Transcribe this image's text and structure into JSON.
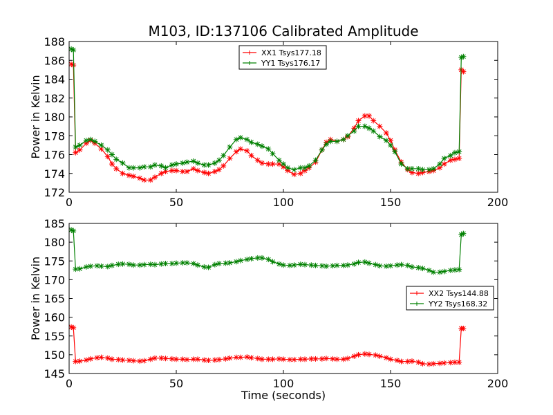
{
  "colors": {
    "xx": "#ff0000",
    "yy": "#008000"
  },
  "chart_data": [
    {
      "type": "line",
      "title": "M103, ID:137106 Calibrated Amplitude",
      "xlabel": "",
      "ylabel": "Power in Kelvin",
      "xlim": [
        0,
        200
      ],
      "ylim": [
        172,
        188
      ],
      "xticks": [
        0,
        50,
        100,
        150,
        200
      ],
      "yticks": [
        172,
        174,
        176,
        178,
        180,
        182,
        184,
        186,
        188
      ],
      "legend_position": "top-center",
      "series": [
        {
          "name": "XX1 Tsys177.18",
          "color": "#ff0000",
          "x": [
            1,
            2,
            3,
            5,
            8,
            10,
            12,
            15,
            18,
            20,
            22,
            25,
            28,
            30,
            33,
            35,
            38,
            40,
            43,
            45,
            48,
            50,
            53,
            55,
            58,
            60,
            63,
            65,
            68,
            70,
            72,
            75,
            78,
            80,
            83,
            85,
            88,
            90,
            93,
            95,
            98,
            100,
            102,
            105,
            108,
            110,
            112,
            115,
            118,
            120,
            122,
            125,
            128,
            130,
            133,
            135,
            138,
            140,
            142,
            145,
            148,
            150,
            152,
            155,
            158,
            160,
            163,
            165,
            168,
            170,
            173,
            175,
            178,
            180,
            182,
            183,
            184
          ],
          "y": [
            185.6,
            185.5,
            176.2,
            176.5,
            177.2,
            177.5,
            177.2,
            176.6,
            175.8,
            175.0,
            174.5,
            174.0,
            173.8,
            173.7,
            173.5,
            173.3,
            173.3,
            173.6,
            174.0,
            174.2,
            174.3,
            174.3,
            174.2,
            174.2,
            174.5,
            174.3,
            174.1,
            174.0,
            174.2,
            174.4,
            174.8,
            175.6,
            176.3,
            176.6,
            176.4,
            175.9,
            175.4,
            175.1,
            175.0,
            175.0,
            175.0,
            174.7,
            174.3,
            173.9,
            174.0,
            174.3,
            174.6,
            175.2,
            176.5,
            177.3,
            177.6,
            177.4,
            177.6,
            177.9,
            178.8,
            179.6,
            180.1,
            180.1,
            179.6,
            179.0,
            178.3,
            177.5,
            176.5,
            175.2,
            174.4,
            174.1,
            174.0,
            174.1,
            174.2,
            174.3,
            174.6,
            175.0,
            175.4,
            175.5,
            175.6,
            185.0,
            184.8
          ]
        },
        {
          "name": "YY1 Tsys176.17",
          "color": "#008000",
          "x": [
            1,
            2,
            3,
            5,
            8,
            10,
            12,
            15,
            18,
            20,
            22,
            25,
            28,
            30,
            33,
            35,
            38,
            40,
            43,
            45,
            48,
            50,
            53,
            55,
            58,
            60,
            63,
            65,
            68,
            70,
            72,
            75,
            78,
            80,
            83,
            85,
            88,
            90,
            93,
            95,
            98,
            100,
            102,
            105,
            108,
            110,
            112,
            115,
            118,
            120,
            122,
            125,
            128,
            130,
            133,
            135,
            138,
            140,
            142,
            145,
            148,
            150,
            152,
            155,
            158,
            160,
            163,
            165,
            168,
            170,
            173,
            175,
            178,
            180,
            182,
            183,
            184
          ],
          "y": [
            187.2,
            187.1,
            176.8,
            177.0,
            177.5,
            177.6,
            177.4,
            177.0,
            176.5,
            176.0,
            175.5,
            175.1,
            174.6,
            174.6,
            174.6,
            174.7,
            174.7,
            174.9,
            174.8,
            174.6,
            174.9,
            175.0,
            175.1,
            175.2,
            175.3,
            175.1,
            174.9,
            174.9,
            175.1,
            175.4,
            175.9,
            176.8,
            177.6,
            177.8,
            177.6,
            177.3,
            177.1,
            176.9,
            176.6,
            176.1,
            175.4,
            175.0,
            174.6,
            174.4,
            174.6,
            174.6,
            174.8,
            175.4,
            176.5,
            177.1,
            177.4,
            177.4,
            177.6,
            178.0,
            178.5,
            179.0,
            179.0,
            178.8,
            178.5,
            177.9,
            177.5,
            177.0,
            176.3,
            175.0,
            174.5,
            174.5,
            174.5,
            174.4,
            174.4,
            174.5,
            175.0,
            175.6,
            175.9,
            176.2,
            176.3,
            186.3,
            186.4
          ]
        }
      ]
    },
    {
      "type": "line",
      "title": "",
      "xlabel": "Time (seconds)",
      "ylabel": "Power in Kelvin",
      "xlim": [
        0,
        200
      ],
      "ylim": [
        145,
        185
      ],
      "xticks": [
        0,
        50,
        100,
        150,
        200
      ],
      "yticks": [
        145,
        150,
        155,
        160,
        165,
        170,
        175,
        180,
        185
      ],
      "legend_position": "center-right",
      "series": [
        {
          "name": "XX2 Tsys144.88",
          "color": "#ff0000",
          "x": [
            1,
            2,
            3,
            5,
            8,
            10,
            13,
            15,
            18,
            20,
            23,
            25,
            28,
            30,
            33,
            35,
            38,
            40,
            43,
            45,
            48,
            50,
            53,
            55,
            58,
            60,
            63,
            65,
            68,
            70,
            73,
            75,
            78,
            80,
            83,
            85,
            88,
            90,
            93,
            95,
            98,
            100,
            103,
            105,
            108,
            110,
            113,
            115,
            118,
            120,
            123,
            125,
            128,
            130,
            133,
            135,
            138,
            140,
            143,
            145,
            148,
            150,
            153,
            155,
            158,
            160,
            163,
            165,
            168,
            170,
            173,
            175,
            178,
            180,
            182,
            183,
            184
          ],
          "y": [
            157.4,
            157.2,
            148.2,
            148.3,
            148.6,
            148.9,
            149.2,
            149.3,
            149.1,
            148.8,
            148.7,
            148.6,
            148.5,
            148.4,
            148.3,
            148.4,
            148.8,
            149.1,
            149.1,
            149.0,
            148.9,
            148.8,
            148.8,
            148.7,
            148.8,
            148.8,
            148.6,
            148.5,
            148.6,
            148.7,
            148.9,
            149.1,
            149.3,
            149.3,
            149.4,
            149.2,
            149.0,
            148.8,
            148.8,
            148.8,
            148.9,
            148.8,
            148.7,
            148.7,
            148.8,
            148.8,
            148.9,
            148.9,
            148.9,
            149.0,
            148.9,
            148.8,
            148.8,
            149.0,
            149.6,
            150.0,
            150.2,
            150.1,
            149.9,
            149.6,
            149.2,
            148.8,
            148.5,
            148.2,
            148.2,
            148.3,
            148.0,
            147.6,
            147.5,
            147.6,
            147.7,
            147.8,
            147.9,
            148.0,
            148.0,
            157.0,
            157.0
          ]
        },
        {
          "name": "YY2 Tsys168.32",
          "color": "#008000",
          "x": [
            1,
            2,
            3,
            5,
            8,
            10,
            13,
            15,
            18,
            20,
            23,
            25,
            28,
            30,
            33,
            35,
            38,
            40,
            43,
            45,
            48,
            50,
            53,
            55,
            58,
            60,
            63,
            65,
            68,
            70,
            73,
            75,
            78,
            80,
            83,
            85,
            88,
            90,
            93,
            95,
            98,
            100,
            103,
            105,
            108,
            110,
            113,
            115,
            118,
            120,
            123,
            125,
            128,
            130,
            133,
            135,
            138,
            140,
            143,
            145,
            148,
            150,
            153,
            155,
            158,
            160,
            163,
            165,
            168,
            170,
            173,
            175,
            178,
            180,
            182,
            183,
            184
          ],
          "y": [
            183.3,
            183.0,
            172.8,
            172.9,
            173.4,
            173.6,
            173.7,
            173.6,
            173.5,
            173.8,
            174.1,
            174.2,
            174.1,
            173.9,
            173.9,
            174.0,
            174.1,
            174.0,
            174.2,
            174.3,
            174.3,
            174.4,
            174.5,
            174.5,
            174.3,
            173.9,
            173.4,
            173.3,
            174.0,
            174.3,
            174.4,
            174.5,
            174.8,
            175.1,
            175.4,
            175.6,
            175.8,
            175.8,
            175.4,
            174.8,
            174.2,
            173.9,
            173.8,
            173.9,
            174.1,
            174.0,
            173.9,
            173.8,
            173.7,
            173.6,
            173.7,
            173.8,
            173.8,
            173.9,
            174.2,
            174.6,
            174.7,
            174.4,
            174.0,
            173.7,
            173.6,
            173.7,
            173.9,
            174.0,
            173.8,
            173.4,
            173.2,
            173.0,
            172.5,
            172.0,
            172.0,
            172.2,
            172.5,
            172.6,
            172.7,
            182.0,
            182.3
          ]
        }
      ]
    }
  ]
}
